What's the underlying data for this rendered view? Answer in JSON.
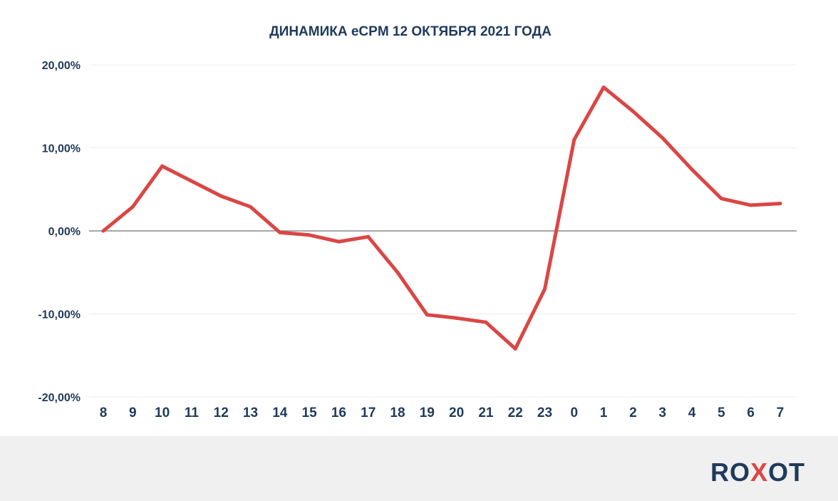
{
  "chart_data": {
    "type": "line",
    "title": "ДИНАМИКА eCPM 12 ОКТЯБРЯ 2021 ГОДА",
    "xlabel": "",
    "ylabel": "",
    "categories": [
      "8",
      "9",
      "10",
      "11",
      "12",
      "13",
      "14",
      "15",
      "16",
      "17",
      "18",
      "19",
      "20",
      "21",
      "22",
      "23",
      "0",
      "1",
      "2",
      "3",
      "4",
      "5",
      "6",
      "7"
    ],
    "series": [
      {
        "values": [
          0.0,
          2.9,
          7.8,
          6.0,
          4.2,
          2.9,
          -0.2,
          -0.5,
          -1.3,
          -0.7,
          -5.0,
          -10.1,
          -10.5,
          -11.0,
          -14.2,
          -7.0,
          11.0,
          17.3,
          14.4,
          11.2,
          7.4,
          3.9,
          3.1,
          3.3
        ],
        "color": "#d94745"
      }
    ],
    "ylim": [
      -20,
      20
    ],
    "yticks": [
      20,
      10,
      0,
      -10,
      -20
    ],
    "ytick_labels": [
      "20,00%",
      "10,00%",
      "0,00%",
      "-10,00%",
      "-20,00%"
    ],
    "grid": true,
    "zero_line_color": "#8a8a8a"
  },
  "footer": {
    "logo_left": "RO",
    "logo_x": "X",
    "logo_right": "OT"
  }
}
